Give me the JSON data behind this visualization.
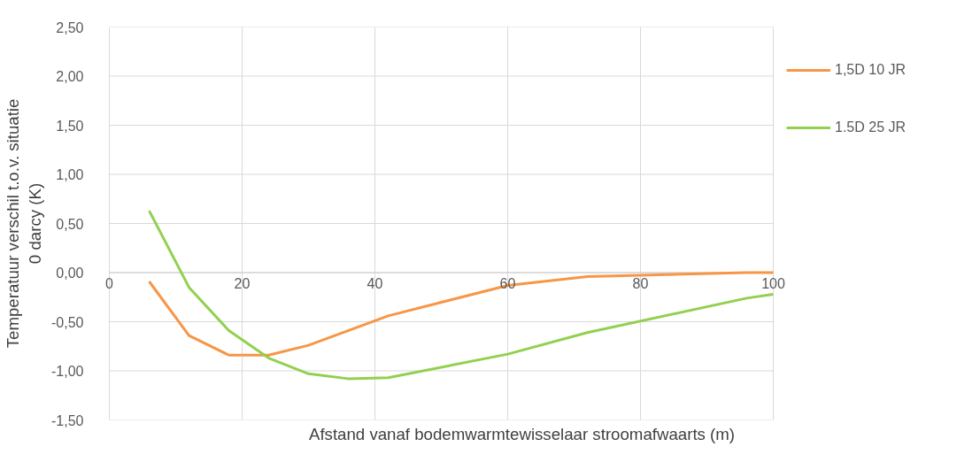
{
  "chart_data": {
    "type": "line",
    "xlabel": "Afstand vanaf bodemwarmtewisselaar stroomafwaarts (m)",
    "ylabel": "Temperatuur verschil t.o.v. situatie\n0 darcy (K)",
    "x": [
      6,
      12,
      18,
      24,
      30,
      42,
      60,
      72,
      96,
      100
    ],
    "series": [
      {
        "name": "1,5D 10 JR",
        "color": "#f79646",
        "values": [
          -0.09,
          -0.64,
          -0.84,
          -0.84,
          -0.74,
          -0.44,
          -0.13,
          -0.04,
          0.0,
          0.0
        ]
      },
      {
        "name": "1.5D 25 JR",
        "color": "#92d050",
        "x": [
          6,
          12,
          18,
          24,
          30,
          36,
          42,
          60,
          72,
          96,
          100
        ],
        "values": [
          0.63,
          -0.15,
          -0.59,
          -0.87,
          -1.03,
          -1.08,
          -1.07,
          -0.83,
          -0.61,
          -0.26,
          -0.22
        ]
      }
    ],
    "xlim": [
      0,
      100
    ],
    "xticks": [
      0,
      20,
      40,
      60,
      80,
      100
    ],
    "ylim": [
      -1.5,
      2.5
    ],
    "yticks": [
      {
        "value": -1.5,
        "label": "-1,50"
      },
      {
        "value": -1.0,
        "label": "-1,00"
      },
      {
        "value": -0.5,
        "label": "-0,50"
      },
      {
        "value": 0,
        "label": "0,00"
      },
      {
        "value": 0.5,
        "label": "0,50"
      },
      {
        "value": 1.0,
        "label": "1,00"
      },
      {
        "value": 1.5,
        "label": "1,50"
      },
      {
        "value": 2.0,
        "label": "2,00"
      },
      {
        "value": 2.5,
        "label": "2,50"
      }
    ],
    "grid": true,
    "legend": "right",
    "marker": "none",
    "line_style": "solid"
  }
}
